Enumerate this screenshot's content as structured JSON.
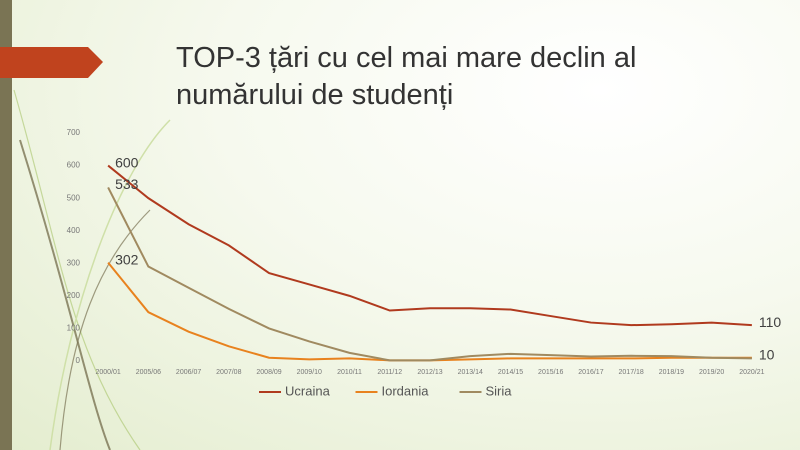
{
  "chart_data": {
    "type": "line",
    "title": "TOP-3 țări cu cel mai mare declin al numărului de studenți",
    "categories": [
      "2000/01",
      "2005/06",
      "2006/07",
      "2007/08",
      "2008/09",
      "2009/10",
      "2010/11",
      "2011/12",
      "2012/13",
      "2013/14",
      "2014/15",
      "2015/16",
      "2016/17",
      "2017/18",
      "2018/19",
      "2019/20",
      "2020/21"
    ],
    "series": [
      {
        "name": "Ucraina",
        "color": "#b03a1e",
        "values": [
          600,
          500,
          420,
          355,
          270,
          235,
          200,
          155,
          162,
          162,
          158,
          138,
          118,
          110,
          113,
          118,
          110
        ],
        "value_labels": [
          "600",
          null,
          null,
          null,
          null,
          null,
          null,
          null,
          null,
          null,
          null,
          null,
          null,
          null,
          null,
          null,
          "110"
        ]
      },
      {
        "name": "Iordania",
        "color": "#e8821e",
        "values": [
          302,
          150,
          90,
          45,
          10,
          5,
          8,
          2,
          2,
          5,
          8,
          8,
          8,
          8,
          10,
          10,
          10
        ],
        "value_labels": [
          "302",
          null,
          null,
          null,
          null,
          null,
          null,
          null,
          null,
          null,
          null,
          null,
          null,
          null,
          null,
          null,
          "10"
        ]
      },
      {
        "name": "Siria",
        "color": "#a08a60",
        "values": [
          533,
          290,
          225,
          160,
          100,
          60,
          25,
          2,
          2,
          15,
          22,
          18,
          14,
          16,
          15,
          10,
          8
        ],
        "value_labels": [
          "533",
          null,
          null,
          null,
          null,
          null,
          null,
          null,
          null,
          null,
          null,
          null,
          null,
          null,
          null,
          null,
          null
        ]
      }
    ],
    "ylim": [
      0,
      700
    ],
    "yticks": [
      0,
      100,
      200,
      300,
      400,
      500,
      600,
      700
    ],
    "legend": "bottom",
    "grid": false
  }
}
